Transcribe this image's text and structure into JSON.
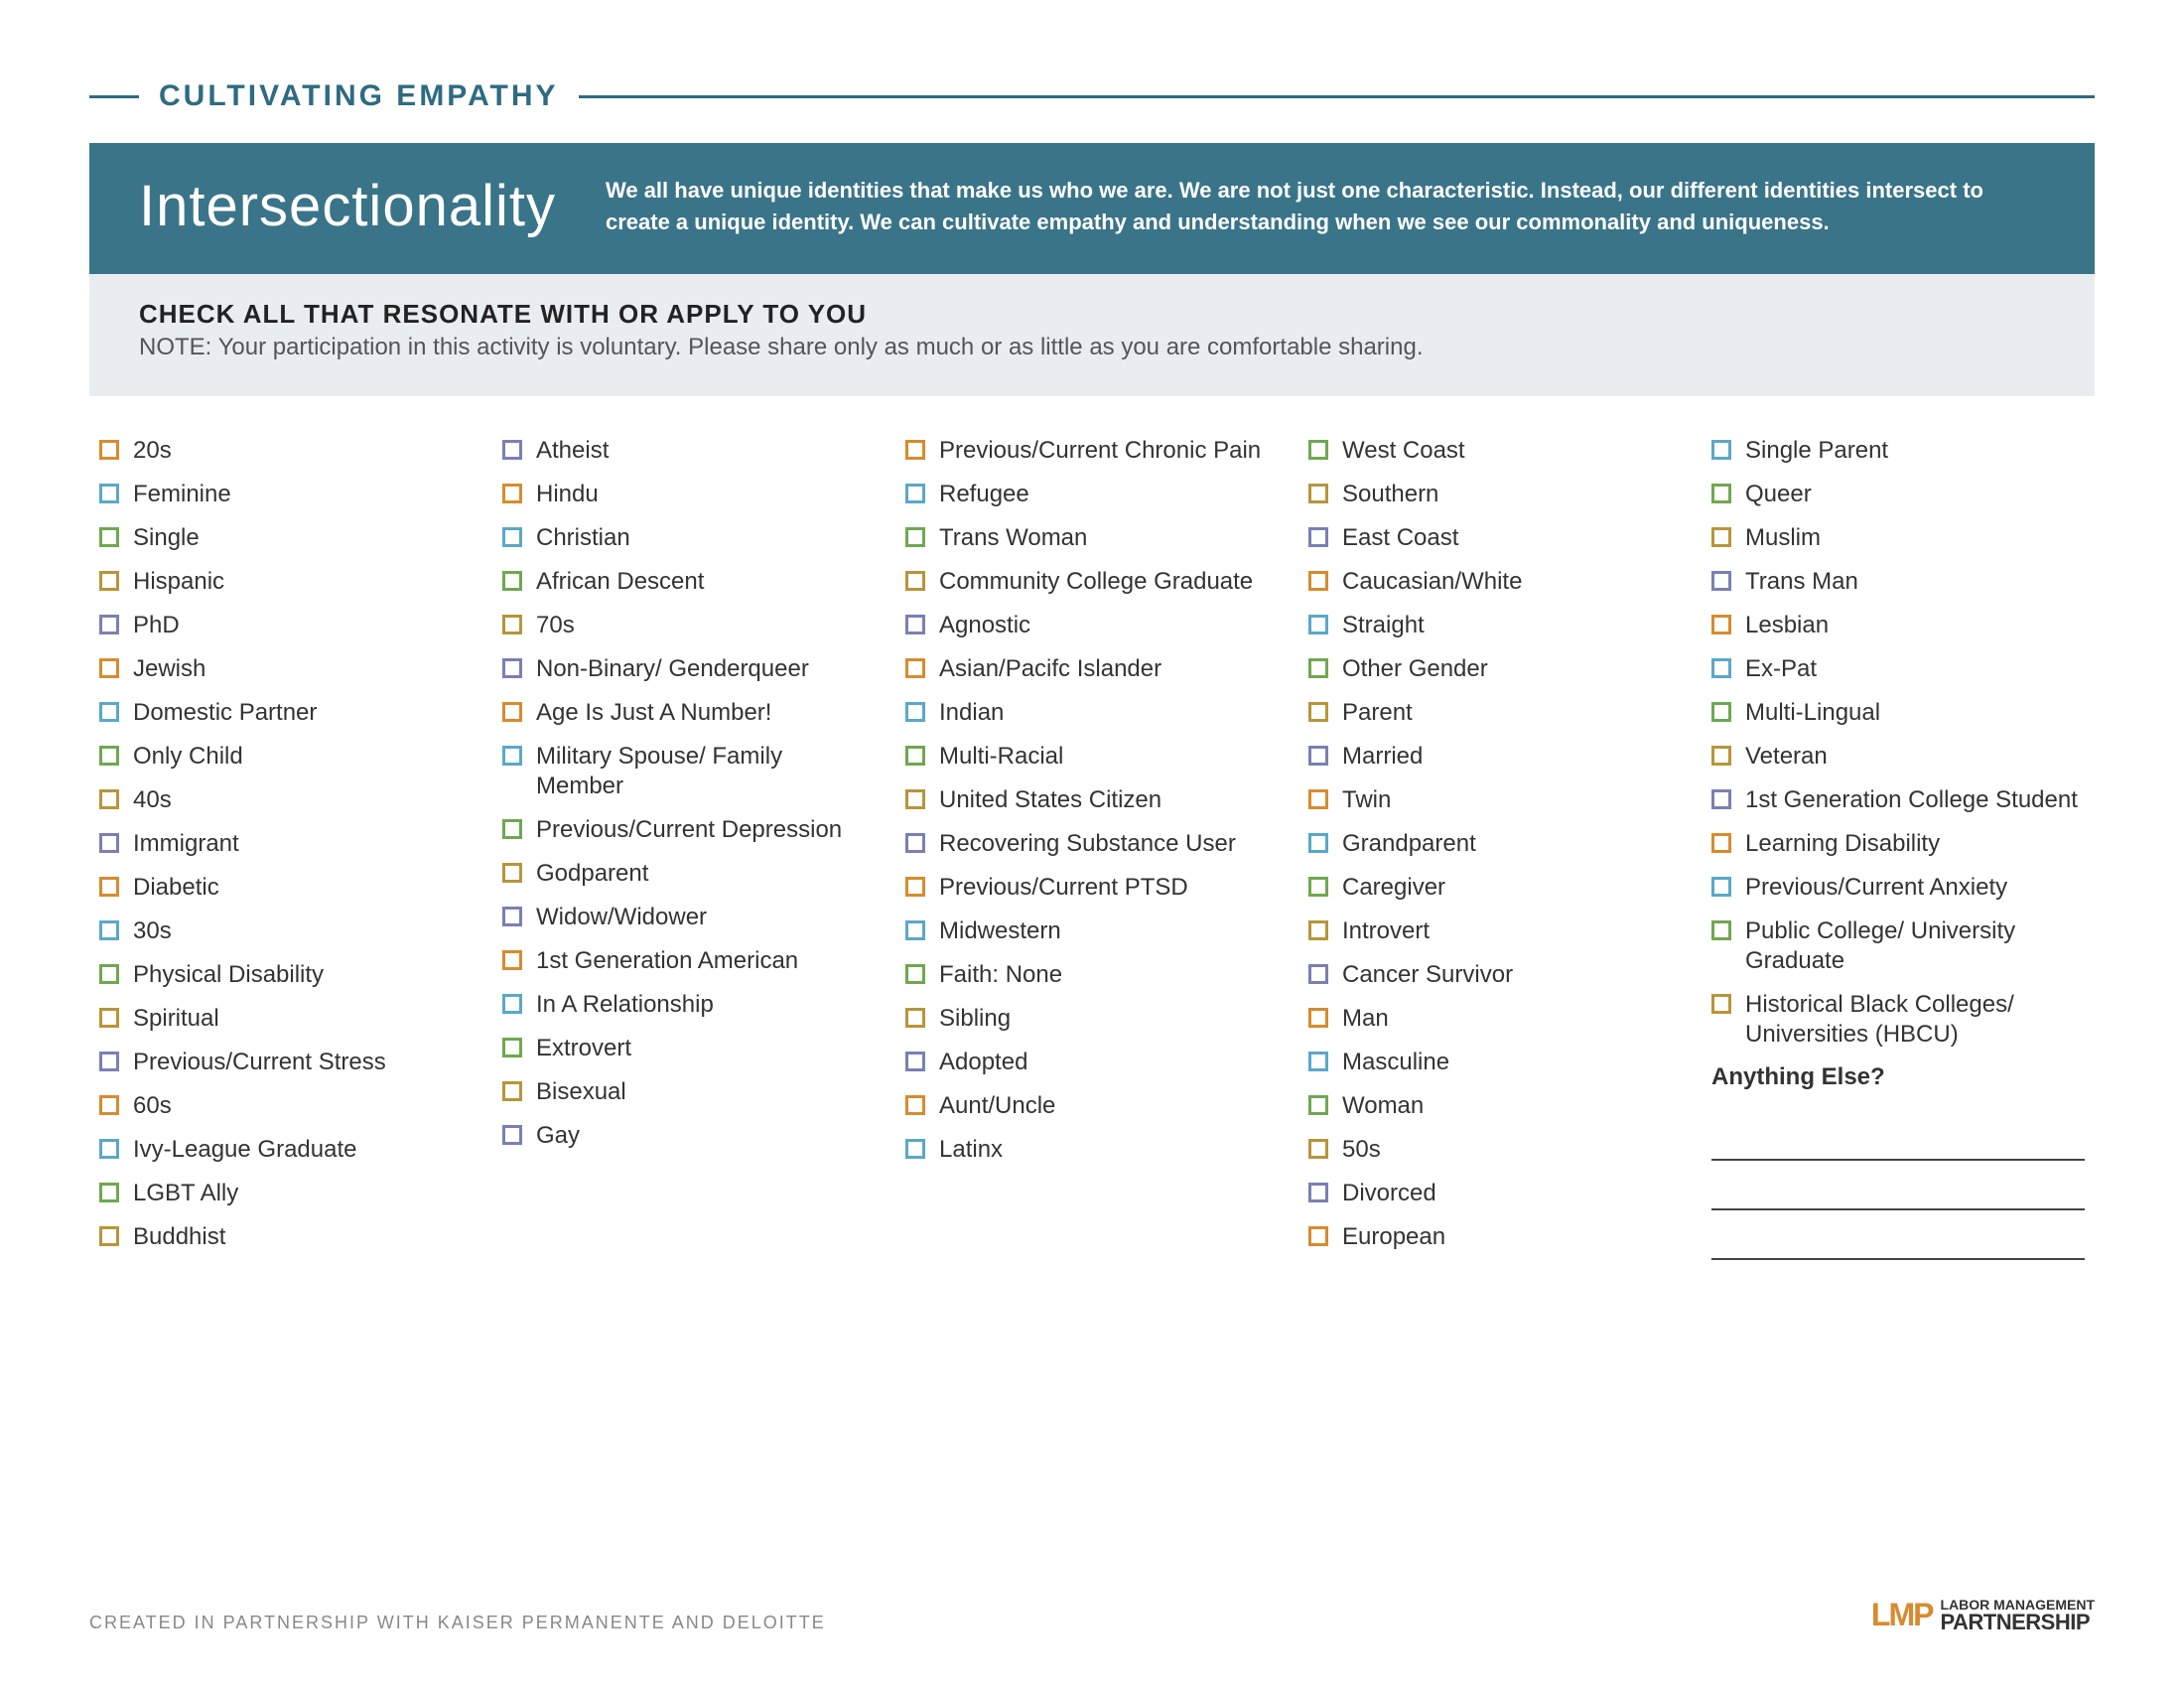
{
  "colors": {
    "orange": "#d88b2e",
    "blue": "#5aa8c9",
    "green": "#6fa84f",
    "gold": "#b8953a",
    "purple": "#7a7fb5",
    "banner_bg": "#3a7489",
    "sub_banner_bg": "#e9edef",
    "rule": "#2e6b82"
  },
  "header": {
    "top_title": "CULTIVATING EMPATHY",
    "banner_title": "Intersectionality",
    "banner_text": "We all have unique identities that make us who we are. We are not just one characteristic. Instead, our different identities intersect to create a unique identity. We can cultivate empathy and understanding when we see our commonality and uniqueness.",
    "sub_heading": "CHECK ALL THAT RESONATE WITH OR APPLY TO YOU",
    "sub_note": "NOTE: Your participation in this activity is voluntary. Please share only as much or as little as you are comfortable sharing."
  },
  "columns": [
    [
      {
        "c": "orange",
        "t": "20s"
      },
      {
        "c": "blue",
        "t": "Feminine"
      },
      {
        "c": "green",
        "t": "Single"
      },
      {
        "c": "gold",
        "t": "Hispanic"
      },
      {
        "c": "purple",
        "t": "PhD"
      },
      {
        "c": "orange",
        "t": "Jewish"
      },
      {
        "c": "blue",
        "t": "Domestic Partner"
      },
      {
        "c": "green",
        "t": "Only Child"
      },
      {
        "c": "gold",
        "t": "40s"
      },
      {
        "c": "purple",
        "t": "Immigrant"
      },
      {
        "c": "orange",
        "t": "Diabetic"
      },
      {
        "c": "blue",
        "t": "30s"
      },
      {
        "c": "green",
        "t": "Physical Disability"
      },
      {
        "c": "gold",
        "t": "Spiritual"
      },
      {
        "c": "purple",
        "t": "Previous/Current Stress"
      },
      {
        "c": "orange",
        "t": "60s"
      },
      {
        "c": "blue",
        "t": "Ivy-League Graduate"
      },
      {
        "c": "green",
        "t": "LGBT Ally"
      },
      {
        "c": "gold",
        "t": "Buddhist"
      }
    ],
    [
      {
        "c": "purple",
        "t": "Atheist"
      },
      {
        "c": "orange",
        "t": "Hindu"
      },
      {
        "c": "blue",
        "t": "Christian"
      },
      {
        "c": "green",
        "t": "African Descent"
      },
      {
        "c": "gold",
        "t": "70s"
      },
      {
        "c": "purple",
        "t": "Non-Binary/ Genderqueer"
      },
      {
        "c": "orange",
        "t": "Age Is Just A Number!"
      },
      {
        "c": "blue",
        "t": "Military Spouse/ Family Member"
      },
      {
        "c": "green",
        "t": "Previous/Current Depression"
      },
      {
        "c": "gold",
        "t": "Godparent"
      },
      {
        "c": "purple",
        "t": "Widow/Widower"
      },
      {
        "c": "orange",
        "t": "1st Generation American"
      },
      {
        "c": "blue",
        "t": "In A Relationship"
      },
      {
        "c": "green",
        "t": "Extrovert"
      },
      {
        "c": "gold",
        "t": "Bisexual"
      },
      {
        "c": "purple",
        "t": "Gay"
      }
    ],
    [
      {
        "c": "orange",
        "t": "Previous/Current Chronic Pain"
      },
      {
        "c": "blue",
        "t": "Refugee"
      },
      {
        "c": "green",
        "t": "Trans Woman"
      },
      {
        "c": "gold",
        "t": "Community College Graduate"
      },
      {
        "c": "purple",
        "t": "Agnostic"
      },
      {
        "c": "orange",
        "t": "Asian/Pacifc Islander"
      },
      {
        "c": "blue",
        "t": "Indian"
      },
      {
        "c": "green",
        "t": "Multi-Racial"
      },
      {
        "c": "gold",
        "t": "United States Citizen"
      },
      {
        "c": "purple",
        "t": "Recovering Substance User"
      },
      {
        "c": "orange",
        "t": "Previous/Current PTSD"
      },
      {
        "c": "blue",
        "t": "Midwestern"
      },
      {
        "c": "green",
        "t": "Faith: None"
      },
      {
        "c": "gold",
        "t": "Sibling"
      },
      {
        "c": "purple",
        "t": "Adopted"
      },
      {
        "c": "orange",
        "t": "Aunt/Uncle"
      },
      {
        "c": "blue",
        "t": "Latinx"
      }
    ],
    [
      {
        "c": "green",
        "t": "West Coast"
      },
      {
        "c": "gold",
        "t": "Southern"
      },
      {
        "c": "purple",
        "t": "East Coast"
      },
      {
        "c": "orange",
        "t": "Caucasian/White"
      },
      {
        "c": "blue",
        "t": "Straight"
      },
      {
        "c": "green",
        "t": "Other Gender"
      },
      {
        "c": "gold",
        "t": "Parent"
      },
      {
        "c": "purple",
        "t": "Married"
      },
      {
        "c": "orange",
        "t": "Twin"
      },
      {
        "c": "blue",
        "t": "Grandparent"
      },
      {
        "c": "green",
        "t": "Caregiver"
      },
      {
        "c": "gold",
        "t": "Introvert"
      },
      {
        "c": "purple",
        "t": "Cancer Survivor"
      },
      {
        "c": "orange",
        "t": "Man"
      },
      {
        "c": "blue",
        "t": "Masculine"
      },
      {
        "c": "green",
        "t": "Woman"
      },
      {
        "c": "gold",
        "t": "50s"
      },
      {
        "c": "purple",
        "t": "Divorced"
      },
      {
        "c": "orange",
        "t": "European"
      }
    ],
    [
      {
        "c": "blue",
        "t": "Single Parent"
      },
      {
        "c": "green",
        "t": "Queer"
      },
      {
        "c": "gold",
        "t": "Muslim"
      },
      {
        "c": "purple",
        "t": "Trans Man"
      },
      {
        "c": "orange",
        "t": "Lesbian"
      },
      {
        "c": "blue",
        "t": "Ex-Pat"
      },
      {
        "c": "green",
        "t": "Multi-Lingual"
      },
      {
        "c": "gold",
        "t": "Veteran"
      },
      {
        "c": "purple",
        "t": "1st Generation College Student"
      },
      {
        "c": "orange",
        "t": "Learning Disability"
      },
      {
        "c": "blue",
        "t": "Previous/Current Anxiety"
      },
      {
        "c": "green",
        "t": "Public College/ University Graduate"
      },
      {
        "c": "gold",
        "t": "Historical Black Colleges/ Universities (HBCU)"
      }
    ]
  ],
  "anything_else_label": "Anything Else?",
  "write_lines_count": 3,
  "footer": {
    "credit": "CREATED IN PARTNERSHIP WITH KAISER PERMANENTE AND DELOITTE",
    "logo_mark": "LMP",
    "logo_line1": "LABOR MANAGEMENT",
    "logo_line2": "PARTNERSHIP"
  }
}
